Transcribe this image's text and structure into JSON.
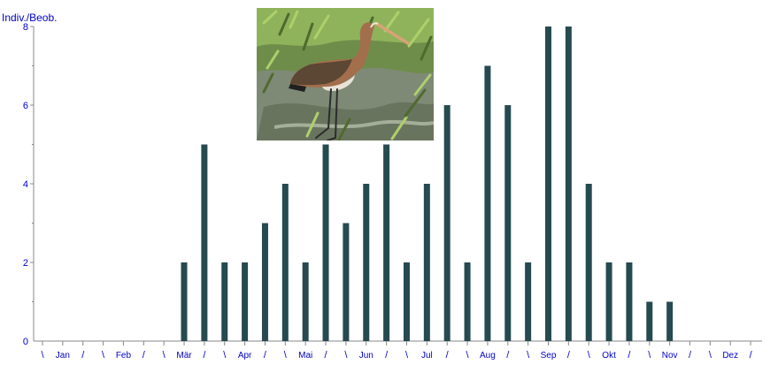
{
  "chart_data": {
    "type": "bar",
    "ylabel": "Indiv./Beob.",
    "ylim": [
      0,
      8
    ],
    "yticks": [
      0,
      2,
      4,
      6,
      8
    ],
    "categories": [
      "\\",
      "Jan",
      "/",
      "\\",
      "Feb",
      "/",
      "\\",
      "Mär",
      "/",
      "\\",
      "Apr",
      "/",
      "\\",
      "Mai",
      "/",
      "\\",
      "Jun",
      "/",
      "\\",
      "Jul",
      "/",
      "\\",
      "Aug",
      "/",
      "\\",
      "Sep",
      "/",
      "\\",
      "Okt",
      "/",
      "\\",
      "Nov",
      "/",
      "\\",
      "Dez",
      "/"
    ],
    "values": [
      0,
      0,
      0,
      0,
      0,
      0,
      0,
      2,
      5,
      2,
      2,
      3,
      4,
      2,
      5,
      3,
      4,
      5,
      2,
      4,
      6,
      2,
      7,
      6,
      2,
      8,
      8,
      4,
      2,
      2,
      1,
      1,
      0,
      0,
      0,
      0
    ],
    "grid": false,
    "bar_color": "#254a50",
    "axis_label_color": "#0000cc"
  },
  "photo": {
    "subject": "black-tailed-godwit"
  }
}
